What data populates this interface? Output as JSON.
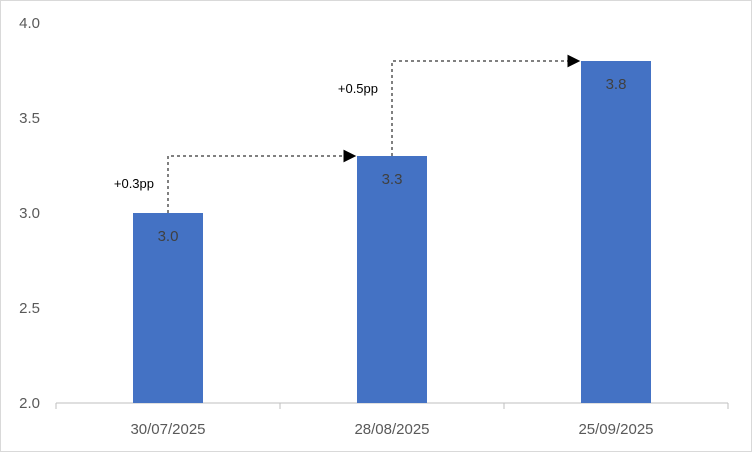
{
  "chart_data": {
    "type": "bar",
    "categories": [
      "30/07/2025",
      "28/08/2025",
      "25/09/2025"
    ],
    "values": [
      3.0,
      3.3,
      3.8
    ],
    "data_labels": [
      "3.0",
      "3.3",
      "3.8"
    ],
    "title": "",
    "xlabel": "",
    "ylabel": "",
    "ylim": [
      2.0,
      4.0
    ],
    "yticks": [
      "2.0",
      "2.5",
      "3.0",
      "3.5",
      "4.0"
    ],
    "grid": false,
    "legend": "none",
    "bar_color": "#4472C4",
    "annotations": [
      {
        "label": "+0.3pp",
        "from": 0,
        "to": 1
      },
      {
        "label": "+0.5pp",
        "from": 1,
        "to": 2
      }
    ]
  }
}
